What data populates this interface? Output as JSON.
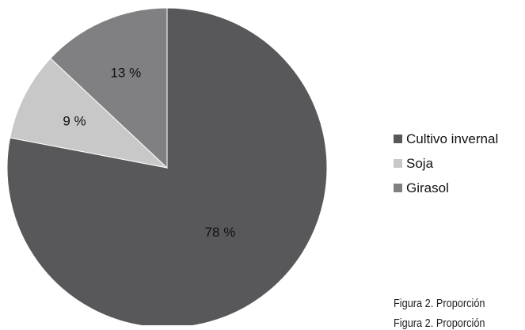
{
  "chart_data": {
    "type": "pie",
    "slices": [
      {
        "label": "Cultivo invernal",
        "value": 78,
        "display": "78 %",
        "color": "#58585a"
      },
      {
        "label": "Soja",
        "value": 9,
        "display": "9 %",
        "color": "#c8c8c8"
      },
      {
        "label": "Girasol",
        "value": 13,
        "display": "13 %",
        "color": "#808082"
      }
    ],
    "start_angle_deg": 0,
    "direction": "clockwise",
    "legend_placement": "right",
    "caption_lines": [
      "Figura 2. Proporción",
      "Figura 2. Proporción"
    ]
  }
}
